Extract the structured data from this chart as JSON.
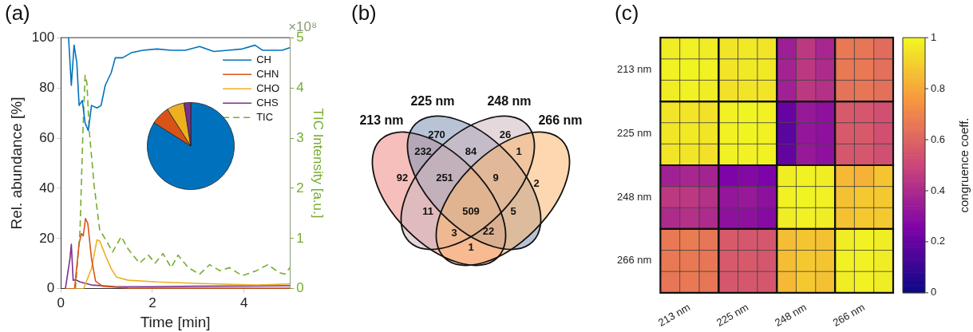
{
  "chart_data": [
    {
      "type": "line",
      "title": "(a)",
      "xlabel": "Time [min]",
      "ylabel": "Rel. abundance [%]",
      "y2label": "TIC Intensity [a.u.]",
      "xlim": [
        0,
        5
      ],
      "xticks": [
        0,
        2,
        4
      ],
      "ylim": [
        0,
        100
      ],
      "yticks": [
        0,
        20,
        40,
        60,
        80,
        100
      ],
      "y2lim": [
        0,
        5
      ],
      "y2ticks": [
        0,
        1,
        2,
        3,
        4,
        5
      ],
      "legend": "top right",
      "grid": false,
      "marker": "none",
      "annotations": [
        "×10⁸"
      ],
      "series": [
        {
          "name": "CH",
          "color": "#0072bd",
          "x": [
            0.17,
            0.23,
            0.29,
            0.35,
            0.4,
            0.47,
            0.53,
            0.6,
            0.67,
            0.79,
            0.88,
            0.97,
            1.1,
            1.19,
            1.35,
            1.54,
            1.79,
            2.1,
            2.41,
            2.72,
            3.03,
            3.34,
            3.65,
            3.96,
            4.24,
            4.4,
            4.65,
            4.83,
            5
          ],
          "values": [
            100,
            81,
            97,
            90,
            73,
            75,
            66,
            63,
            73,
            72,
            73,
            81,
            86,
            92,
            92,
            94,
            95,
            95.5,
            95,
            95,
            96.5,
            94.5,
            95,
            95.5,
            97,
            95,
            95,
            95,
            96
          ]
        },
        {
          "name": "CHN",
          "color": "#d95319",
          "x": [
            0.1,
            0.3,
            0.4,
            0.45,
            0.49,
            0.54,
            0.59,
            0.67,
            0.76,
            0.91,
            1.5,
            3,
            5
          ],
          "values": [
            0,
            0,
            18,
            22,
            21,
            28,
            26,
            12,
            3,
            1,
            0.2,
            0.2,
            0.2
          ]
        },
        {
          "name": "CHO",
          "color": "#edb120",
          "x": [
            0.1,
            0.5,
            0.54,
            0.67,
            0.79,
            0.85,
            0.98,
            1.1,
            1.22,
            1.47,
            2.1,
            3.03,
            4.27,
            5
          ],
          "values": [
            0,
            0,
            2,
            8,
            19.5,
            19,
            13,
            8,
            4.6,
            3.4,
            2.7,
            2.1,
            1.5,
            1.9
          ]
        },
        {
          "name": "CHS",
          "color": "#7e2f8e",
          "x": [
            0.1,
            0.2,
            0.23,
            0.27,
            0.32,
            0.42,
            0.67,
            1.16,
            2,
            3,
            4,
            5
          ],
          "values": [
            0,
            12,
            17.7,
            3.4,
            3.6,
            2.7,
            1.5,
            0.9,
            0.8,
            1,
            1.1,
            1.2
          ]
        },
        {
          "name": "TIC",
          "color": "#77ac30",
          "axis": "y2",
          "line_style": "dashed",
          "x": [
            0.32,
            0.42,
            0.48,
            0.53,
            0.57,
            0.62,
            0.73,
            0.85,
            0.98,
            1.13,
            1.32,
            1.47,
            1.72,
            1.91,
            2.06,
            2.23,
            2.41,
            2.56,
            2.78,
            3.03,
            3.25,
            3.47,
            3.68,
            3.96,
            4.27,
            4.52,
            4.77,
            4.89,
            5
          ],
          "values": [
            0,
            1.17,
            3.04,
            4.25,
            4.1,
            3.16,
            2.04,
            1.17,
            0.98,
            0.73,
            1.04,
            0.79,
            0.51,
            0.67,
            0.51,
            0.7,
            0.42,
            0.67,
            0.42,
            0.29,
            0.48,
            0.36,
            0.42,
            0.26,
            0.36,
            0.48,
            0.32,
            0.29,
            0.42
          ]
        }
      ]
    },
    {
      "type": "pie",
      "categories": [
        null,
        null,
        null,
        null
      ],
      "values": [
        84,
        7,
        6.5,
        2.5
      ],
      "colors": [
        "#0072bd",
        "#d95319",
        "#edb120",
        "#7e2f8e"
      ]
    },
    {
      "type": "other",
      "title": "(b)",
      "categories": [
        "213 nm",
        "225 nm",
        "248 nm",
        "266 nm"
      ],
      "colors": [
        "#ef8a84",
        "#7e93b5",
        "#cdb8c0",
        "#f9b670"
      ],
      "annotations": [
        "92",
        "270",
        "26",
        "2",
        "232",
        "84",
        "1",
        "11",
        "251",
        "9",
        "509",
        "5",
        "3",
        "22",
        "1"
      ]
    },
    {
      "type": "heatmap",
      "title": "(c)",
      "clabel": "congruence coeff.",
      "clim": [
        0,
        1
      ],
      "cticks": [
        0,
        0.2,
        0.4,
        0.6,
        0.8,
        1
      ],
      "categories": [
        null,
        "213 nm",
        null,
        null,
        "225 nm",
        null,
        null,
        "248 nm",
        null,
        null,
        "266 nm",
        null
      ],
      "y_categories": [
        null,
        "213 nm",
        null,
        null,
        "225 nm",
        null,
        null,
        "248 nm",
        null,
        null,
        "266 nm",
        null
      ],
      "cells": [
        [
          0.97,
          0.98,
          0.97,
          0.95,
          0.96,
          0.95,
          0.35,
          0.45,
          0.38,
          0.66,
          0.65,
          0.62
        ],
        [
          0.98,
          0.99,
          0.98,
          0.95,
          0.96,
          0.96,
          0.37,
          0.45,
          0.4,
          0.66,
          0.66,
          0.63
        ],
        [
          0.97,
          0.98,
          0.97,
          0.94,
          0.95,
          0.95,
          0.36,
          0.45,
          0.42,
          0.64,
          0.65,
          0.63
        ],
        [
          0.95,
          0.95,
          0.94,
          0.98,
          0.99,
          0.98,
          0.2,
          0.33,
          0.3,
          0.56,
          0.55,
          0.53
        ],
        [
          0.95,
          0.96,
          0.95,
          0.98,
          0.99,
          0.98,
          0.17,
          0.32,
          0.3,
          0.56,
          0.56,
          0.53
        ],
        [
          0.95,
          0.95,
          0.94,
          0.98,
          0.98,
          0.98,
          0.19,
          0.33,
          0.3,
          0.55,
          0.55,
          0.53
        ],
        [
          0.36,
          0.38,
          0.37,
          0.25,
          0.27,
          0.25,
          0.97,
          0.98,
          0.97,
          0.84,
          0.82,
          0.87
        ],
        [
          0.45,
          0.45,
          0.42,
          0.32,
          0.33,
          0.3,
          0.98,
          0.99,
          0.98,
          0.86,
          0.88,
          0.88
        ],
        [
          0.4,
          0.42,
          0.4,
          0.3,
          0.3,
          0.28,
          0.97,
          0.98,
          0.97,
          0.86,
          0.88,
          0.88
        ],
        [
          0.66,
          0.67,
          0.65,
          0.56,
          0.55,
          0.55,
          0.85,
          0.87,
          0.86,
          0.97,
          0.98,
          0.97
        ],
        [
          0.66,
          0.66,
          0.65,
          0.56,
          0.56,
          0.55,
          0.85,
          0.88,
          0.87,
          0.98,
          0.98,
          0.97
        ],
        [
          0.65,
          0.66,
          0.65,
          0.55,
          0.55,
          0.55,
          0.84,
          0.88,
          0.86,
          0.97,
          0.98,
          0.97
        ]
      ]
    }
  ]
}
